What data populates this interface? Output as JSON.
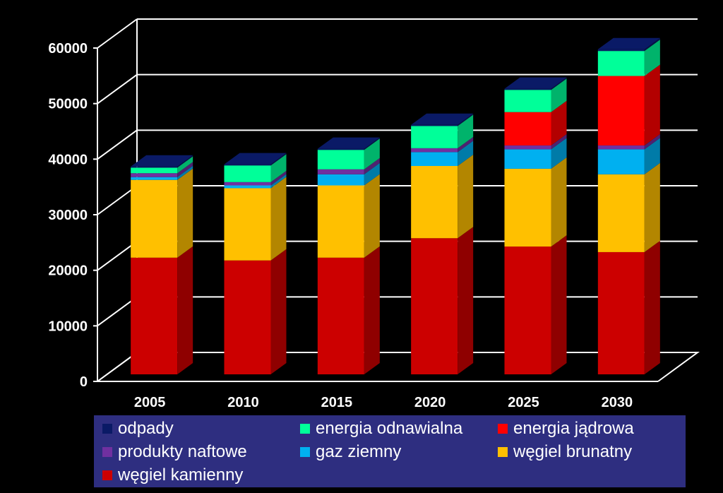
{
  "chart_data": {
    "type": "bar",
    "stacked": true,
    "three_d": true,
    "categories": [
      "2005",
      "2010",
      "2015",
      "2020",
      "2025",
      "2030"
    ],
    "ylim": [
      0,
      60000
    ],
    "yticks": [
      "0",
      "10000",
      "20000",
      "30000",
      "40000",
      "50000",
      "60000"
    ],
    "grid": true,
    "legend_position": "bottom",
    "series": [
      {
        "name": "węgiel kamienny",
        "color": "#cc0000",
        "values": [
          21000,
          20500,
          21000,
          24500,
          23000,
          22000
        ]
      },
      {
        "name": "węgiel brunatny",
        "color": "#ffc000",
        "values": [
          14000,
          13000,
          13000,
          13000,
          14000,
          14000
        ]
      },
      {
        "name": "gaz ziemny",
        "color": "#00b0f0",
        "values": [
          500,
          500,
          2000,
          2500,
          3500,
          4500
        ]
      },
      {
        "name": "produkty naftowe",
        "color": "#7030a0",
        "values": [
          700,
          600,
          900,
          700,
          700,
          700
        ]
      },
      {
        "name": "energia jądrowa",
        "color": "#ff0000",
        "values": [
          0,
          0,
          0,
          0,
          6000,
          12500
        ]
      },
      {
        "name": "energia odnawialna",
        "color": "#00ff99",
        "values": [
          1000,
          3000,
          3500,
          4000,
          4000,
          4500
        ]
      },
      {
        "name": "odpady",
        "color": "#0a1a66",
        "values": [
          200,
          200,
          200,
          200,
          200,
          300
        ]
      }
    ]
  },
  "legend": {
    "items": [
      {
        "label": "odpady",
        "color": "#0a1a66"
      },
      {
        "label": "energia odnawialna",
        "color": "#00ff99"
      },
      {
        "label": "energia jądrowa",
        "color": "#ff0000"
      },
      {
        "label": "produkty naftowe",
        "color": "#7030a0"
      },
      {
        "label": "gaz ziemny",
        "color": "#00b0f0"
      },
      {
        "label": "węgiel brunatny",
        "color": "#ffc000"
      },
      {
        "label": "węgiel kamienny",
        "color": "#cc0000"
      }
    ]
  }
}
